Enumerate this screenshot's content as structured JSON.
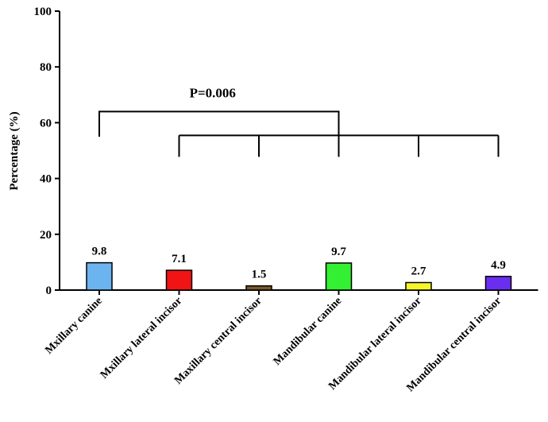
{
  "chart_data": {
    "type": "bar",
    "categories": [
      "Mxillary canine",
      "Mxillary lateral incisor",
      "Maxillary central incisor",
      "Mandibular canine",
      "Mandibular lateral incisor",
      "Mandibular central incisor"
    ],
    "values": [
      9.8,
      7.1,
      1.5,
      9.7,
      2.7,
      4.9
    ],
    "value_labels": [
      "9.8",
      "7.1",
      "1.5",
      "9.7",
      "2.7",
      "4.9"
    ],
    "colors": [
      "#6cb4f0",
      "#f01414",
      "#7a5a2a",
      "#33f033",
      "#f5f52a",
      "#6a2ef0"
    ],
    "ylabel": "Percentage (%)",
    "ylim": [
      0,
      100
    ],
    "yticks": [
      0,
      20,
      40,
      60,
      80,
      100
    ],
    "grid": false,
    "annotation": {
      "text": "P=0.006",
      "bracket_from": "Mxillary canine",
      "bracket_to_group": [
        "Mxillary lateral incisor",
        "Maxillary central incisor",
        "Mandibular canine",
        "Mandibular lateral incisor",
        "Mandibular central incisor"
      ],
      "upper_level": 64,
      "lower_level": 55
    }
  }
}
